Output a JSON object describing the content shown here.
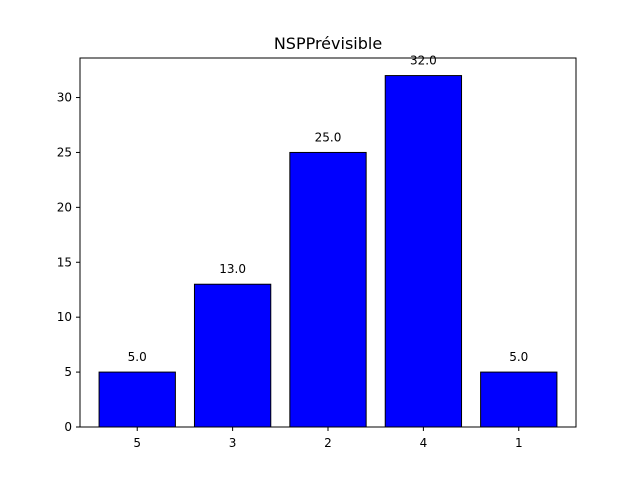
{
  "chart_data": {
    "type": "bar",
    "title": "NSPPrévisible",
    "xlabel": "",
    "ylabel": "",
    "categories": [
      "5",
      "3",
      "2",
      "4",
      "1"
    ],
    "values": [
      5,
      13,
      25,
      32,
      5
    ],
    "data_labels": [
      "5.0",
      "13.0",
      "25.0",
      "32.0",
      "5.0"
    ],
    "ylim": [
      0,
      33.6
    ],
    "yticks": [
      0,
      5,
      10,
      15,
      20,
      25,
      30
    ],
    "grid": false,
    "legend": "none",
    "bar_color": "#0000ff",
    "edge_color": "#000000"
  }
}
